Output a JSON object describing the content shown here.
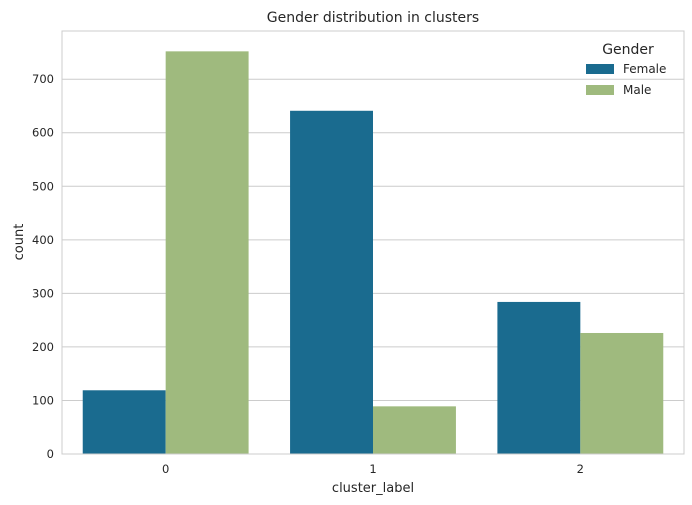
{
  "chart_data": {
    "type": "bar",
    "title": "Gender distribution in clusters",
    "xlabel": "cluster_label",
    "ylabel": "count",
    "categories": [
      "0",
      "1",
      "2"
    ],
    "series": [
      {
        "name": "Female",
        "color": "#1a6b8f",
        "values": [
          119,
          641,
          284
        ]
      },
      {
        "name": "Male",
        "color": "#9fba7e",
        "values": [
          752,
          89,
          226
        ]
      }
    ],
    "ylim": [
      0,
      790
    ],
    "yticks": [
      0,
      100,
      200,
      300,
      400,
      500,
      600,
      700
    ],
    "grid": true,
    "legend": {
      "title": "Gender",
      "placement": "top-right"
    }
  }
}
